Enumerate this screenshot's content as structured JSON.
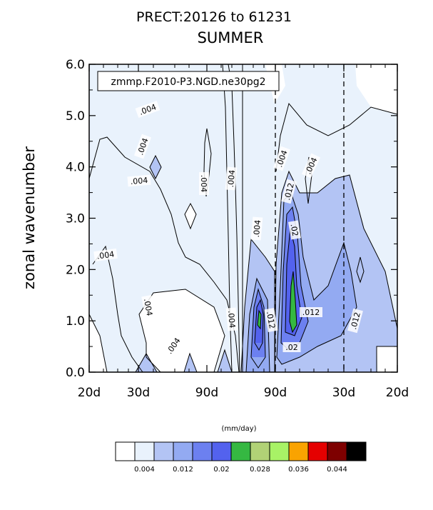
{
  "chart_data": {
    "type": "contour",
    "title": "PRECT:20126 to 61231",
    "subtitle": "SUMMER",
    "ylabel": "zonal wavenumber",
    "annotation_box": "zmmp.F2010-P3.NGD.ne30pg2",
    "units_label": "(mm/day)",
    "ylim": [
      0,
      6
    ],
    "y_ticks": [
      "0.0",
      "1.0",
      "2.0",
      "3.0",
      "4.0",
      "5.0",
      "6.0"
    ],
    "x_ticks": [
      "20d",
      "30d",
      "90d",
      "90d",
      "30d",
      "20d"
    ],
    "contour_labels": [
      ".004",
      ".004",
      ".004",
      ".004",
      ".004",
      ".004",
      ".004",
      ".004",
      ".004",
      ".004",
      ".004",
      ".004",
      ".012",
      ".012",
      ".012",
      ".012",
      ".02",
      ".02",
      ".012"
    ],
    "colorbar": {
      "colors": [
        "#ffffff",
        "#e9f2fc",
        "#b3c4f4",
        "#93aaf2",
        "#6c80f0",
        "#5362ee",
        "#35b842",
        "#b1d276",
        "#a8f266",
        "#f9a301",
        "#e50000",
        "#7e0000",
        "#000000"
      ],
      "labels": [
        "0.004",
        "0.012",
        "0.02",
        "0.028",
        "0.036",
        "0.044"
      ]
    }
  }
}
